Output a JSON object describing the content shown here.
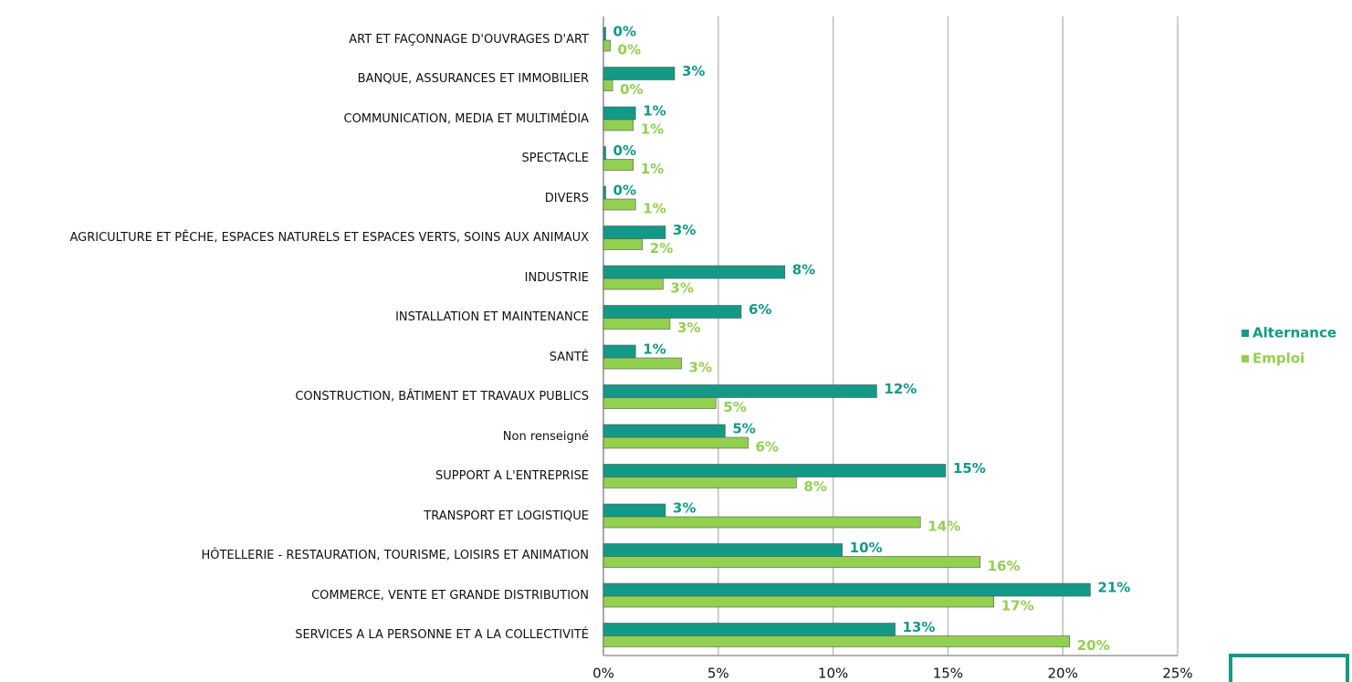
{
  "chart_data": {
    "type": "barh",
    "categories": [
      "ART ET FAÇONNAGE D'OUVRAGES D'ART",
      "BANQUE, ASSURANCES ET IMMOBILIER",
      "COMMUNICATION, MEDIA ET MULTIMÉDIA",
      "SPECTACLE",
      "DIVERS",
      "AGRICULTURE ET PÊCHE, ESPACES NATURELS ET ESPACES VERTS, SOINS AUX ANIMAUX",
      "INDUSTRIE",
      "INSTALLATION ET MAINTENANCE",
      "SANTÉ",
      "CONSTRUCTION, BÂTIMENT ET TRAVAUX PUBLICS",
      "Non renseigné",
      "SUPPORT A L'ENTREPRISE",
      "TRANSPORT ET LOGISTIQUE ",
      "HÔTELLERIE - RESTAURATION, TOURISME, LOISIRS ET ANIMATION",
      "COMMERCE, VENTE ET GRANDE DISTRIBUTION",
      "SERVICES A LA PERSONNE ET A LA COLLECTIVITÉ"
    ],
    "series": [
      {
        "name": "Alternance",
        "color": "#129a87",
        "values": [
          0.1,
          3.1,
          1.4,
          0.1,
          0.1,
          2.7,
          7.9,
          6.0,
          1.4,
          11.9,
          5.3,
          14.9,
          2.7,
          10.4,
          21.2,
          12.7
        ],
        "value_labels": [
          "0%",
          "3%",
          "1%",
          "0%",
          "0%",
          "3%",
          "8%",
          "6%",
          "1%",
          "12%",
          "5%",
          "15%",
          "3%",
          "10%",
          "21%",
          "13%"
        ]
      },
      {
        "name": "Emploi",
        "color": "#92d050",
        "values": [
          0.3,
          0.4,
          1.3,
          1.3,
          1.4,
          1.7,
          2.6,
          2.9,
          3.4,
          4.9,
          6.3,
          8.4,
          13.8,
          16.4,
          17.0,
          20.3
        ],
        "value_labels": [
          "0%",
          "0%",
          "1%",
          "1%",
          "1%",
          "2%",
          "3%",
          "3%",
          "3%",
          "5%",
          "6%",
          "8%",
          "14%",
          "16%",
          "17%",
          "20%"
        ]
      }
    ],
    "xlim": [
      0,
      25
    ],
    "xticks": [
      {
        "value": 0,
        "label": "0%"
      },
      {
        "value": 5,
        "label": "5%"
      },
      {
        "value": 10,
        "label": "10%"
      },
      {
        "value": 15,
        "label": "15%"
      },
      {
        "value": 20,
        "label": "20%"
      },
      {
        "value": 25,
        "label": "25%"
      }
    ],
    "grid": true,
    "legend": "right"
  }
}
